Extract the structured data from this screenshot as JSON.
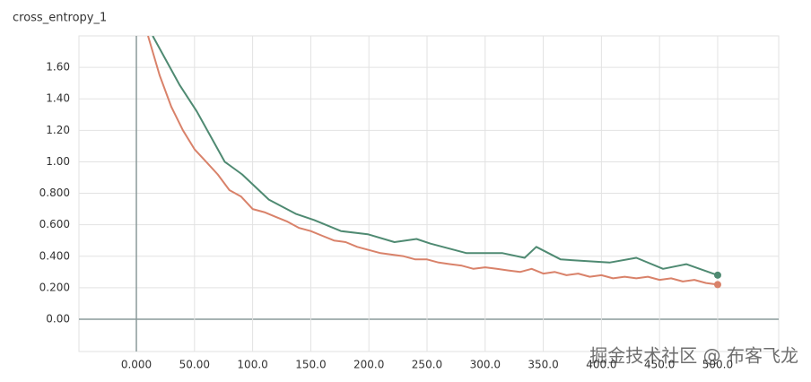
{
  "chart_data": {
    "type": "line",
    "title": "cross_entropy_1",
    "xlim": [
      -49.4,
      552.5
    ],
    "ylim": [
      -0.205,
      1.8
    ],
    "xticks": [
      {
        "value": 0,
        "label": "0.000"
      },
      {
        "value": 50,
        "label": "50.00"
      },
      {
        "value": 100,
        "label": "100.0"
      },
      {
        "value": 150,
        "label": "150.0"
      },
      {
        "value": 200,
        "label": "200.0"
      },
      {
        "value": 250,
        "label": "250.0"
      },
      {
        "value": 300,
        "label": "300.0"
      },
      {
        "value": 350,
        "label": "350.0"
      },
      {
        "value": 400,
        "label": "400.0"
      },
      {
        "value": 450,
        "label": "450.0"
      },
      {
        "value": 500,
        "label": "500.0"
      }
    ],
    "yticks": [
      {
        "value": 0,
        "label": "0.00"
      },
      {
        "value": 0.2,
        "label": "0.200"
      },
      {
        "value": 0.4,
        "label": "0.400"
      },
      {
        "value": 0.6,
        "label": "0.600"
      },
      {
        "value": 0.8,
        "label": "0.800"
      },
      {
        "value": 1,
        "label": "1.00"
      },
      {
        "value": 1.2,
        "label": "1.20"
      },
      {
        "value": 1.4,
        "label": "1.40"
      },
      {
        "value": 1.6,
        "label": "1.60"
      }
    ],
    "grid": true,
    "series": [
      {
        "color": "#4f8a72",
        "x": [
          14,
          37,
          52,
          76,
          91,
          114,
          137,
          153,
          176,
          199,
          222,
          241,
          253,
          284,
          315,
          334,
          344,
          365,
          407,
          430,
          453,
          473,
          500
        ],
        "values": [
          1.8,
          1.49,
          1.32,
          1.0,
          0.92,
          0.76,
          0.67,
          0.63,
          0.56,
          0.54,
          0.49,
          0.51,
          0.48,
          0.42,
          0.42,
          0.39,
          0.46,
          0.38,
          0.36,
          0.39,
          0.32,
          0.35,
          0.28
        ]
      },
      {
        "color": "#d9826a",
        "x": [
          10,
          20,
          30,
          40,
          50,
          60,
          70,
          80,
          90,
          100,
          110,
          120,
          130,
          140,
          150,
          160,
          170,
          180,
          190,
          200,
          210,
          220,
          230,
          240,
          250,
          260,
          270,
          280,
          290,
          300,
          310,
          320,
          330,
          340,
          350,
          360,
          370,
          380,
          390,
          400,
          410,
          420,
          430,
          440,
          450,
          460,
          470,
          480,
          490,
          500
        ],
        "values": [
          1.8,
          1.55,
          1.35,
          1.2,
          1.08,
          1.0,
          0.92,
          0.82,
          0.78,
          0.7,
          0.68,
          0.65,
          0.62,
          0.58,
          0.56,
          0.53,
          0.5,
          0.49,
          0.46,
          0.44,
          0.42,
          0.41,
          0.4,
          0.38,
          0.38,
          0.36,
          0.35,
          0.34,
          0.32,
          0.33,
          0.32,
          0.31,
          0.3,
          0.32,
          0.29,
          0.3,
          0.28,
          0.29,
          0.27,
          0.28,
          0.26,
          0.27,
          0.26,
          0.27,
          0.25,
          0.26,
          0.24,
          0.25,
          0.23,
          0.22
        ]
      }
    ]
  },
  "watermark": "掘金技术社区 @ 布客飞龙"
}
